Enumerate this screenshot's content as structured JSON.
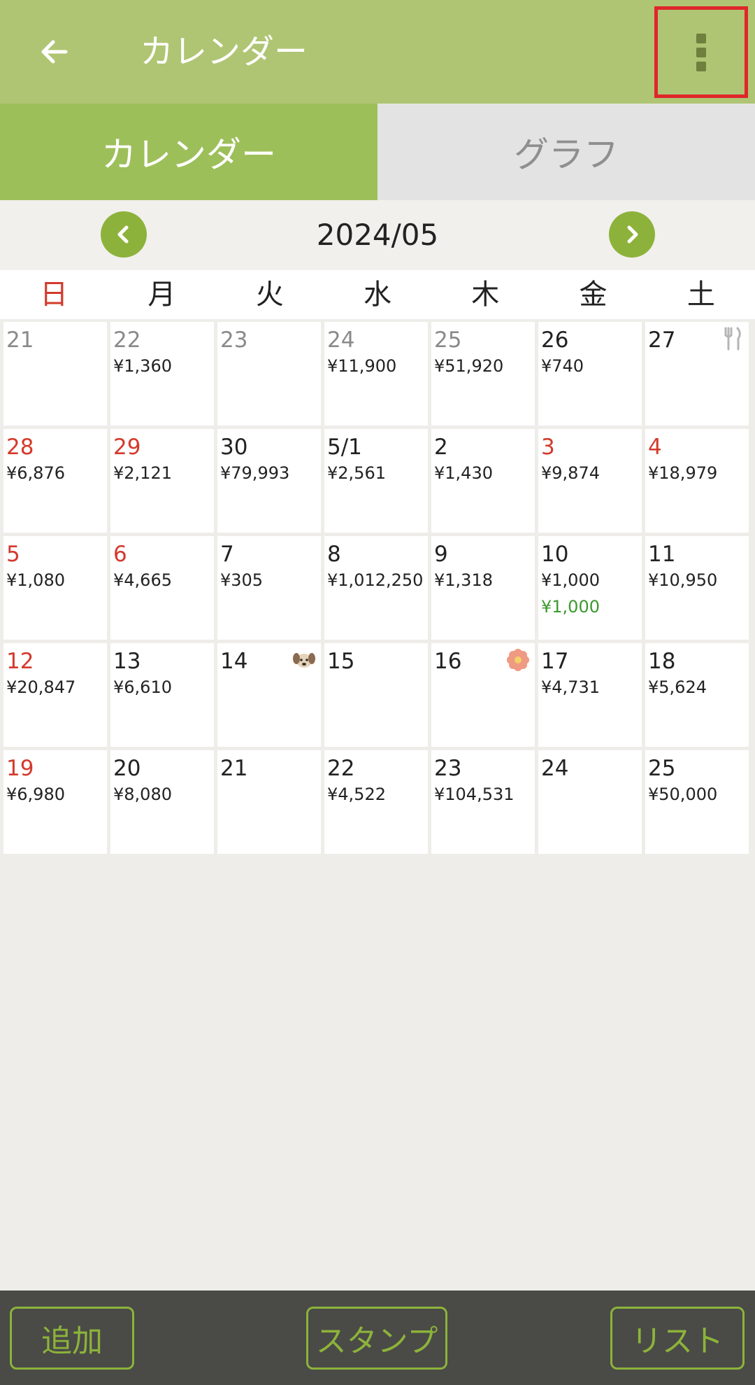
{
  "appbar": {
    "title": "カレンダー",
    "back_icon": "arrow-left-icon",
    "menu_icon": "more-vert-icon"
  },
  "tabs": [
    {
      "label": "カレンダー",
      "active": true
    },
    {
      "label": "グラフ",
      "active": false
    }
  ],
  "month": {
    "label": "2024/05",
    "prev_icon": "chevron-left-icon",
    "next_icon": "chevron-right-icon"
  },
  "weekdays": [
    "日",
    "月",
    "火",
    "水",
    "木",
    "金",
    "土"
  ],
  "weeks": [
    [
      {
        "day": "21",
        "tone": "grey",
        "amount": ""
      },
      {
        "day": "22",
        "tone": "grey",
        "amount": "¥1,360"
      },
      {
        "day": "23",
        "tone": "grey",
        "amount": ""
      },
      {
        "day": "24",
        "tone": "grey",
        "amount": "¥11,900"
      },
      {
        "day": "25",
        "tone": "grey",
        "amount": "¥51,920"
      },
      {
        "day": "26",
        "tone": "normal",
        "amount": "¥740"
      },
      {
        "day": "27",
        "tone": "normal",
        "amount": "",
        "stamp": "fork-knife-icon"
      }
    ],
    [
      {
        "day": "28",
        "tone": "red",
        "amount": "¥6,876"
      },
      {
        "day": "29",
        "tone": "red",
        "amount": "¥2,121"
      },
      {
        "day": "30",
        "tone": "normal",
        "amount": "¥79,993"
      },
      {
        "day": "5/1",
        "tone": "normal",
        "amount": "¥2,561"
      },
      {
        "day": "2",
        "tone": "normal",
        "amount": "¥1,430"
      },
      {
        "day": "3",
        "tone": "red",
        "amount": "¥9,874"
      },
      {
        "day": "4",
        "tone": "red",
        "amount": "¥18,979"
      }
    ],
    [
      {
        "day": "5",
        "tone": "red",
        "amount": "¥1,080"
      },
      {
        "day": "6",
        "tone": "red",
        "amount": "¥4,665"
      },
      {
        "day": "7",
        "tone": "normal",
        "amount": "¥305"
      },
      {
        "day": "8",
        "tone": "normal",
        "amount": "¥1,012,250"
      },
      {
        "day": "9",
        "tone": "normal",
        "amount": "¥1,318"
      },
      {
        "day": "10",
        "tone": "normal",
        "amount": "¥1,000",
        "income": "¥1,000"
      },
      {
        "day": "11",
        "tone": "normal",
        "amount": "¥10,950"
      }
    ],
    [
      {
        "day": "12",
        "tone": "red",
        "amount": "¥20,847"
      },
      {
        "day": "13",
        "tone": "normal",
        "amount": "¥6,610"
      },
      {
        "day": "14",
        "tone": "normal",
        "amount": "",
        "stamp": "dog-icon"
      },
      {
        "day": "15",
        "tone": "normal",
        "amount": ""
      },
      {
        "day": "16",
        "tone": "normal",
        "amount": "",
        "stamp": "flower-icon"
      },
      {
        "day": "17",
        "tone": "normal",
        "amount": "¥4,731"
      },
      {
        "day": "18",
        "tone": "normal",
        "amount": "¥5,624"
      }
    ],
    [
      {
        "day": "19",
        "tone": "red",
        "amount": "¥6,980"
      },
      {
        "day": "20",
        "tone": "normal",
        "amount": "¥8,080"
      },
      {
        "day": "21",
        "tone": "normal",
        "amount": ""
      },
      {
        "day": "22",
        "tone": "normal",
        "amount": "¥4,522"
      },
      {
        "day": "23",
        "tone": "normal",
        "amount": "¥104,531"
      },
      {
        "day": "24",
        "tone": "normal",
        "amount": ""
      },
      {
        "day": "25",
        "tone": "normal",
        "amount": "¥50,000"
      }
    ]
  ],
  "bottom": {
    "add_label": "追加",
    "stamp_label": "スタンプ",
    "list_label": "リスト"
  },
  "colors": {
    "appbar": "#afc573",
    "tab_active": "#9dbf5a",
    "accent": "#8cb33a",
    "holiday": "#d33a2c",
    "income": "#3c9a2e",
    "highlight_box": "#e0262b"
  }
}
